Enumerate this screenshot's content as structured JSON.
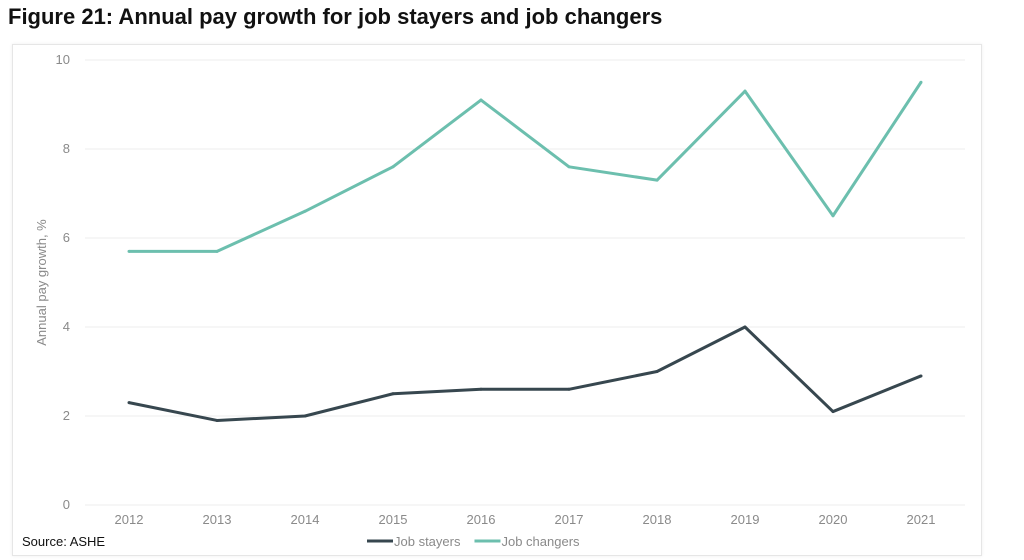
{
  "title": "Figure 21: Annual pay growth for job stayers and job changers",
  "source": "Source: ASHE",
  "chart_data": {
    "type": "line",
    "title": "Figure 21: Annual pay growth for job stayers and job changers",
    "xlabel": "",
    "ylabel": "Annual pay growth, %",
    "categories": [
      "2012",
      "2013",
      "2014",
      "2015",
      "2016",
      "2017",
      "2018",
      "2019",
      "2020",
      "2021"
    ],
    "ylim": [
      0,
      10
    ],
    "yticks": [
      0,
      2,
      4,
      6,
      8,
      10
    ],
    "grid": true,
    "legend": "bottom",
    "series": [
      {
        "name": "Job stayers",
        "color": "#37474f",
        "values": [
          2.3,
          1.9,
          2.0,
          2.5,
          2.6,
          2.6,
          3.0,
          4.0,
          2.1,
          2.9
        ]
      },
      {
        "name": "Job changers",
        "color": "#6cbfae",
        "values": [
          5.7,
          5.7,
          6.6,
          7.6,
          9.1,
          7.6,
          7.3,
          9.3,
          6.5,
          9.5
        ]
      }
    ]
  }
}
